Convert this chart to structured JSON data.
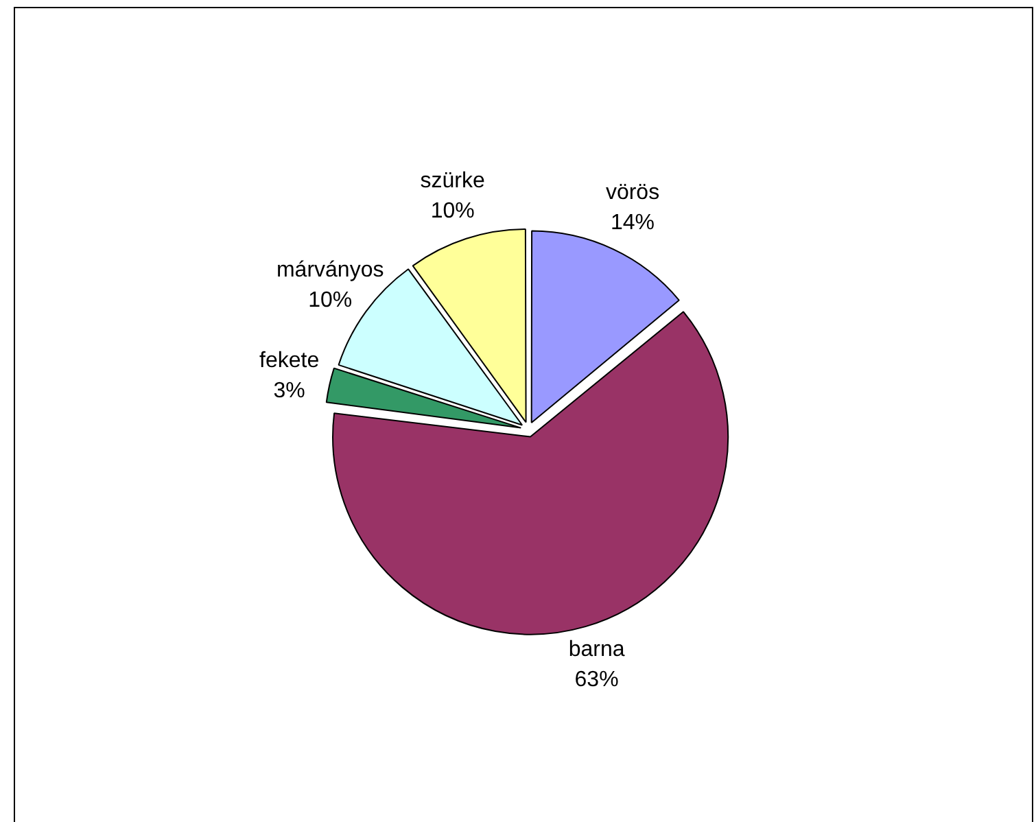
{
  "chart_data": {
    "type": "pie",
    "categories": [
      "vörös",
      "barna",
      "fekete",
      "márványos",
      "szürke"
    ],
    "values": [
      14,
      63,
      3,
      10,
      10
    ],
    "value_labels": [
      "14%",
      "63%",
      "3%",
      "10%",
      "10%"
    ],
    "colors": [
      "#9999ff",
      "#993366",
      "#339966",
      "#ccffff",
      "#ffff99"
    ],
    "legend": false
  }
}
